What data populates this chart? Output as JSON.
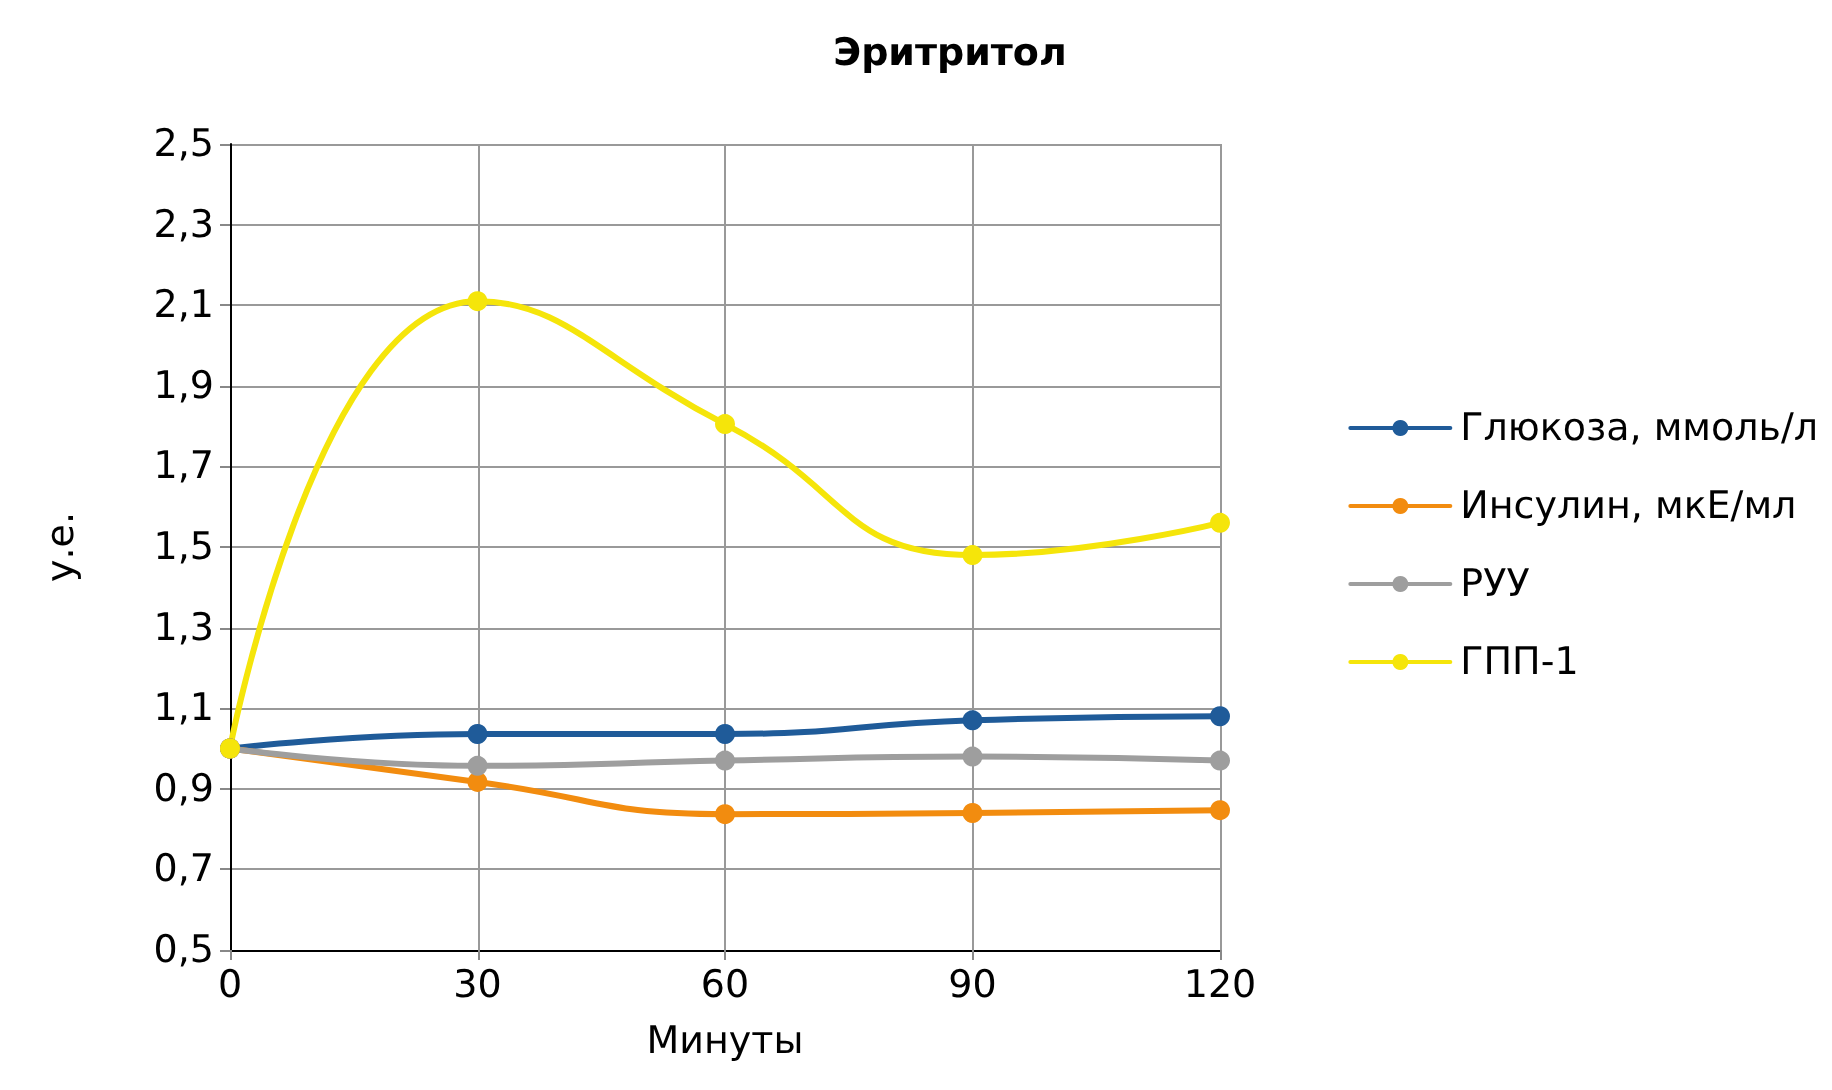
{
  "chart_data": {
    "type": "line",
    "title": "Эритритол",
    "xlabel": "Минуты",
    "ylabel": "у.е.",
    "x": [
      0,
      30,
      60,
      90,
      120
    ],
    "series": [
      {
        "name": "Глюкоза, ммоль/л",
        "color": "#1f5b99",
        "values": [
          1.0,
          1.036,
          1.036,
          1.07,
          1.08
        ]
      },
      {
        "name": "Инсулин, мкЕ/мл",
        "color": "#f28c0f",
        "values": [
          1.0,
          0.917,
          0.837,
          0.84,
          0.847
        ]
      },
      {
        "name": "РУУ",
        "color": "#9e9e9e",
        "values": [
          1.0,
          0.957,
          0.97,
          0.98,
          0.97
        ]
      },
      {
        "name": "ГПП-1",
        "color": "#f5e50a",
        "values": [
          1.0,
          2.11,
          1.805,
          1.48,
          1.56
        ]
      }
    ],
    "xlim": [
      0,
      120
    ],
    "xticks": [
      0,
      30,
      60,
      90,
      120
    ],
    "ylim": [
      0.5,
      2.5
    ],
    "yticks": [
      {
        "value": 0.5,
        "label": "0,5"
      },
      {
        "value": 0.7,
        "label": "0,7"
      },
      {
        "value": 0.9,
        "label": "0,9"
      },
      {
        "value": 1.1,
        "label": "1,1"
      },
      {
        "value": 1.3,
        "label": "1,3"
      },
      {
        "value": 1.5,
        "label": "1,5"
      },
      {
        "value": 1.7,
        "label": "1,7"
      },
      {
        "value": 1.9,
        "label": "1,9"
      },
      {
        "value": 2.1,
        "label": "2,1"
      },
      {
        "value": 2.3,
        "label": "2,3"
      },
      {
        "value": 2.5,
        "label": "2,5"
      }
    ],
    "grid": true,
    "legend": "right",
    "marker": "circle",
    "line_style": "solid"
  }
}
